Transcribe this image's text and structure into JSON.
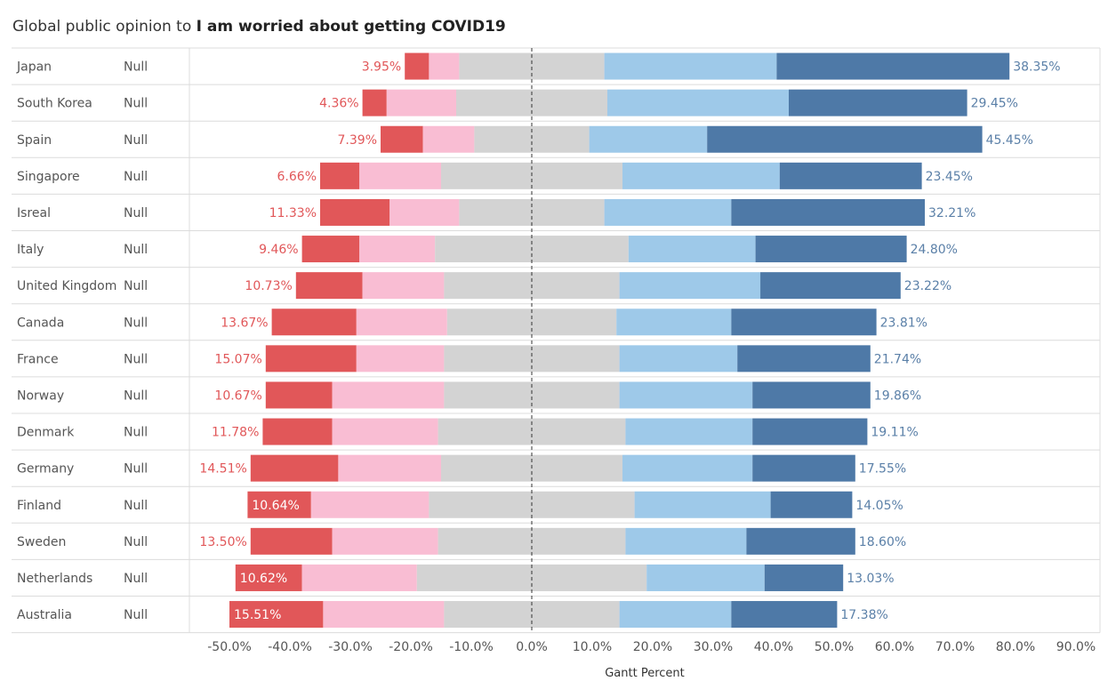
{
  "title": {
    "prefix": "Global public opinion to",
    "emphasis": "I am worried about getting COVID19"
  },
  "chart_data": {
    "type": "bar",
    "orientation": "horizontal",
    "stacked": "diverging",
    "xlabel": "Gantt Percent",
    "xlim": [
      -55,
      92
    ],
    "xticks": [
      -50,
      -40,
      -30,
      -20,
      -10,
      0,
      10,
      20,
      30,
      40,
      50,
      60,
      70,
      80,
      90
    ],
    "tick_labels": [
      "-50.0%",
      "-40.0%",
      "-30.0%",
      "-20.0%",
      "-10.0%",
      "0.0%",
      "10.0%",
      "20.0%",
      "30.0%",
      "40.0%",
      "50.0%",
      "60.0%",
      "70.0%",
      "80.0%",
      "90.0%"
    ],
    "group_column_value": "Null",
    "zero_line": "dashed",
    "colors": {
      "strong_disagree": "#e15759",
      "disagree": "#f9bdd3",
      "neutral": "#d3d3d3",
      "agree": "#9ec9e9",
      "strong_agree": "#4e79a7",
      "left_label": "#e15759",
      "right_label": "#5b80a8",
      "row_text": "#555555",
      "grid": "#dcdcdc"
    },
    "segment_order": [
      "strong_disagree",
      "disagree",
      "neutral_left",
      "neutral_right",
      "agree",
      "strong_agree"
    ],
    "rows": [
      {
        "category": "Japan",
        "group": "Null",
        "bounds": [
          -21.0,
          -17.0,
          -12.0,
          0,
          12.0,
          40.5,
          79.0
        ],
        "left_label": "3.95%",
        "right_label": "38.35%"
      },
      {
        "category": "South Korea",
        "group": "Null",
        "bounds": [
          -28.0,
          -24.0,
          -12.5,
          0,
          12.5,
          42.5,
          72.0
        ],
        "left_label": "4.36%",
        "right_label": "29.45%"
      },
      {
        "category": "Spain",
        "group": "Null",
        "bounds": [
          -25.0,
          -18.0,
          -9.5,
          0,
          9.5,
          29.0,
          74.5
        ],
        "left_label": "7.39%",
        "right_label": "45.45%"
      },
      {
        "category": "Singapore",
        "group": "Null",
        "bounds": [
          -35.0,
          -28.5,
          -15.0,
          0,
          15.0,
          41.0,
          64.5
        ],
        "left_label": "6.66%",
        "right_label": "23.45%"
      },
      {
        "category": "Isreal",
        "group": "Null",
        "bounds": [
          -35.0,
          -23.5,
          -12.0,
          0,
          12.0,
          33.0,
          65.0
        ],
        "left_label": "11.33%",
        "right_label": "32.21%"
      },
      {
        "category": "Italy",
        "group": "Null",
        "bounds": [
          -38.0,
          -28.5,
          -16.0,
          0,
          16.0,
          37.0,
          62.0
        ],
        "left_label": "9.46%",
        "right_label": "24.80%"
      },
      {
        "category": "United Kingdom",
        "group": "Null",
        "bounds": [
          -39.0,
          -28.0,
          -14.5,
          0,
          14.5,
          37.8,
          61.0
        ],
        "left_label": "10.73%",
        "right_label": "23.22%"
      },
      {
        "category": "Canada",
        "group": "Null",
        "bounds": [
          -43.0,
          -29.0,
          -14.0,
          0,
          14.0,
          33.0,
          57.0
        ],
        "left_label": "13.67%",
        "right_label": "23.81%"
      },
      {
        "category": "France",
        "group": "Null",
        "bounds": [
          -44.0,
          -29.0,
          -14.5,
          0,
          14.5,
          34.0,
          56.0
        ],
        "left_label": "15.07%",
        "right_label": "21.74%"
      },
      {
        "category": "Norway",
        "group": "Null",
        "bounds": [
          -44.0,
          -33.0,
          -14.5,
          0,
          14.5,
          36.5,
          56.0
        ],
        "left_label": "10.67%",
        "right_label": "19.86%"
      },
      {
        "category": "Denmark",
        "group": "Null",
        "bounds": [
          -44.5,
          -33.0,
          -15.5,
          0,
          15.5,
          36.5,
          55.5
        ],
        "left_label": "11.78%",
        "right_label": "19.11%"
      },
      {
        "category": "Germany",
        "group": "Null",
        "bounds": [
          -46.5,
          -32.0,
          -15.0,
          0,
          15.0,
          36.5,
          53.5
        ],
        "left_label": "14.51%",
        "right_label": "17.55%"
      },
      {
        "category": "Finland",
        "group": "Null",
        "bounds": [
          -47.0,
          -36.5,
          -17.0,
          0,
          17.0,
          39.5,
          53.0
        ],
        "left_label": "10.64%",
        "right_label": "14.05%"
      },
      {
        "category": "Sweden",
        "group": "Null",
        "bounds": [
          -46.5,
          -33.0,
          -15.5,
          0,
          15.5,
          35.5,
          53.5
        ],
        "left_label": "13.50%",
        "right_label": "18.60%"
      },
      {
        "category": "Netherlands",
        "group": "Null",
        "bounds": [
          -49.0,
          -38.0,
          -19.0,
          0,
          19.0,
          38.5,
          51.5
        ],
        "left_label": "10.62%",
        "right_label": "13.03%"
      },
      {
        "category": "Australia",
        "group": "Null",
        "bounds": [
          -50.0,
          -34.5,
          -14.5,
          0,
          14.5,
          33.0,
          50.5
        ],
        "left_label": "15.51%",
        "right_label": "17.38%"
      }
    ]
  }
}
